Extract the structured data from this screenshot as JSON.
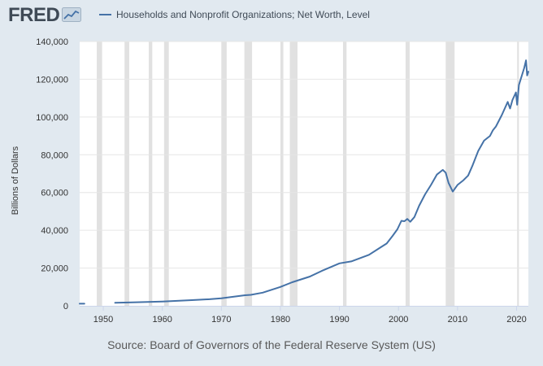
{
  "header": {
    "logo_text": "FRED",
    "legend_label": "Households and Nonprofit Organizations; Net Worth, Level",
    "series_color": "#4572a7"
  },
  "source_text": "Source: Board of Governors of the Federal Reserve System (US)",
  "chart_data": {
    "type": "line",
    "ylabel": "Billions of Dollars",
    "xlabel": "",
    "ylim": [
      0,
      140000
    ],
    "xlim": [
      1946,
      2022
    ],
    "yticks": [
      0,
      20000,
      40000,
      60000,
      80000,
      100000,
      120000,
      140000
    ],
    "ytick_labels": [
      "0",
      "20,000",
      "40,000",
      "60,000",
      "80,000",
      "100,000",
      "120,000",
      "140,000"
    ],
    "xticks": [
      1950,
      1960,
      1970,
      1980,
      1990,
      2000,
      2010,
      2020
    ],
    "xtick_labels": [
      "1950",
      "1960",
      "1970",
      "1980",
      "1990",
      "2000",
      "2010",
      "2020"
    ],
    "grid": true,
    "recession_color": "#e1e1e1",
    "recessions": [
      [
        1948.9,
        1949.8
      ],
      [
        1953.6,
        1954.4
      ],
      [
        1957.7,
        1958.3
      ],
      [
        1960.3,
        1961.1
      ],
      [
        1970.0,
        1970.9
      ],
      [
        1973.9,
        1975.2
      ],
      [
        1980.0,
        1980.5
      ],
      [
        1981.6,
        1982.9
      ],
      [
        1990.6,
        1991.2
      ],
      [
        2001.2,
        2001.9
      ],
      [
        2008.0,
        2009.5
      ],
      [
        2020.1,
        2020.4
      ]
    ],
    "series": [
      {
        "name": "Households and Nonprofit Organizations; Net Worth, Level",
        "segments": [
          {
            "x": [
              1946,
              1946.8
            ],
            "y": [
              1100,
              1100
            ]
          },
          {
            "x": [
              1952,
              1955,
              1960,
              1965,
              1968,
              1970,
              1972,
              1974,
              1975,
              1977,
              1980,
              1982,
              1985,
              1987,
              1990,
              1992,
              1995,
              1997,
              1998,
              1999,
              1999.8,
              2000.5,
              2001,
              2001.5,
              2002,
              2002.7,
              2003.5,
              2004.5,
              2005.5,
              2006.5,
              2007.5,
              2008,
              2008.5,
              2009.2,
              2010,
              2011,
              2011.8,
              2012.5,
              2013.5,
              2014.5,
              2015.5,
              2016,
              2016.5,
              2017.5,
              2018.5,
              2018.9,
              2019.3,
              2019.9,
              2020.1,
              2020.4,
              2020.8,
              2021.3,
              2021.6,
              2021.8,
              2022
            ],
            "y": [
              1600,
              1800,
              2300,
              3000,
              3500,
              4000,
              4800,
              5600,
              5800,
              7000,
              10000,
              12500,
              15500,
              18500,
              22500,
              23500,
              27000,
              31000,
              33000,
              37000,
              40500,
              45000,
              44800,
              46000,
              44500,
              47000,
              53000,
              59000,
              64000,
              69500,
              72000,
              70500,
              65000,
              60500,
              64000,
              66500,
              69000,
              74000,
              82000,
              87500,
              90000,
              93000,
              95000,
              101000,
              108000,
              104500,
              109000,
              113000,
              106500,
              117000,
              121000,
              126000,
              130000,
              122000,
              124000
            ]
          }
        ]
      }
    ]
  }
}
